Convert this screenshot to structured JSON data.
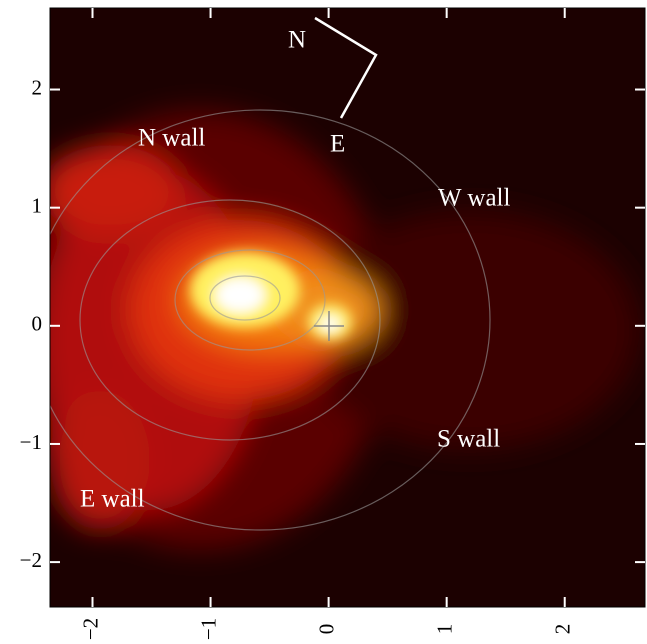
{
  "chart_data": {
    "type": "image",
    "xlim": [
      -2.36,
      2.68
    ],
    "ylim": [
      -2.38,
      2.69
    ],
    "xticks": [
      {
        "value": -2,
        "label": "−2"
      },
      {
        "value": -1,
        "label": "−1"
      },
      0,
      1,
      2
    ],
    "yticks": [
      {
        "value": -2,
        "label": "−2"
      },
      {
        "value": -1,
        "label": "−1"
      },
      0,
      1,
      2
    ],
    "annotations": [
      "N wall",
      "W wall",
      "S wall",
      "E wall",
      "N",
      "E"
    ]
  }
}
